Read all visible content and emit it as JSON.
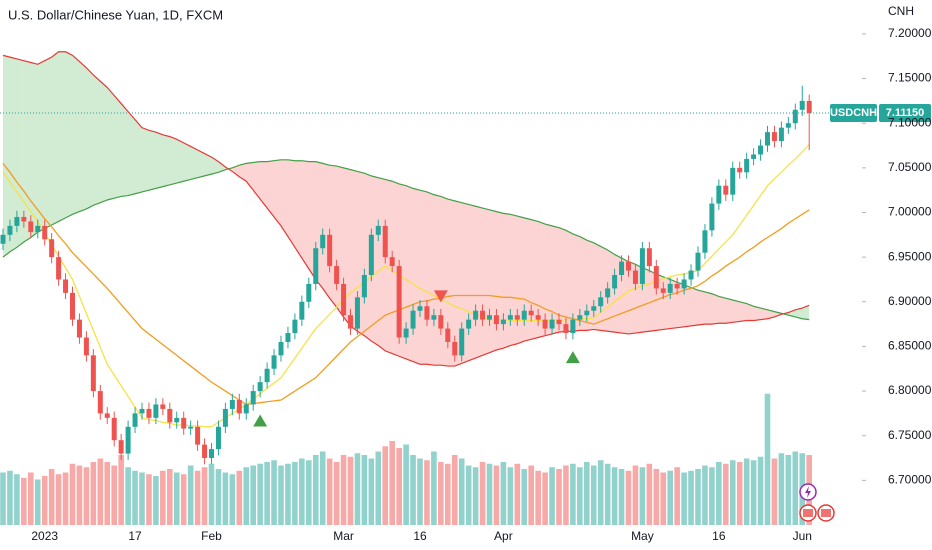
{
  "chart_data": {
    "type": "candlestick",
    "title": "U.S. Dollar/Chinese Yuan, 1D, FXCM",
    "axis_label": "CNH",
    "symbol": "USDCNH",
    "last_label": "7.11150",
    "up_color": "#26a69a",
    "down_color": "#ef5350",
    "volume_up_color": "rgba(38,166,154,0.5)",
    "volume_down_color": "rgba(239,83,80,0.5)",
    "categories": [
      null,
      null,
      null,
      null,
      null,
      null,
      "2023",
      null,
      null,
      null,
      null,
      null,
      null,
      null,
      null,
      null,
      null,
      null,
      null,
      "17",
      null,
      null,
      null,
      null,
      null,
      null,
      null,
      null,
      null,
      null,
      "Feb",
      null,
      null,
      null,
      null,
      null,
      null,
      null,
      null,
      null,
      null,
      null,
      null,
      null,
      null,
      null,
      null,
      null,
      null,
      "Mar",
      null,
      null,
      null,
      null,
      null,
      null,
      null,
      null,
      null,
      null,
      "16",
      null,
      null,
      null,
      null,
      null,
      null,
      null,
      null,
      null,
      null,
      null,
      "Apr",
      null,
      null,
      null,
      null,
      null,
      null,
      null,
      null,
      null,
      null,
      null,
      null,
      null,
      null,
      null,
      null,
      null,
      null,
      null,
      "May",
      null,
      null,
      null,
      null,
      null,
      null,
      null,
      null,
      null,
      null,
      "16",
      null,
      null,
      null,
      null,
      null,
      null,
      null,
      null,
      null,
      null,
      null,
      "Jun",
      null
    ],
    "open": [
      6.965,
      6.975,
      6.985,
      6.995,
      6.99,
      6.978,
      6.985,
      6.97,
      6.95,
      6.925,
      6.91,
      6.88,
      6.86,
      6.84,
      6.8,
      6.775,
      6.77,
      6.745,
      6.73,
      6.76,
      6.775,
      6.78,
      6.77,
      6.785,
      6.78,
      6.765,
      6.77,
      6.758,
      6.76,
      6.74,
      6.725,
      6.735,
      6.76,
      6.78,
      6.79,
      6.775,
      6.785,
      6.8,
      6.81,
      6.825,
      6.84,
      6.855,
      6.865,
      6.88,
      6.9,
      6.92,
      6.96,
      6.975,
      6.94,
      6.92,
      6.885,
      6.87,
      6.905,
      6.93,
      6.975,
      6.985,
      6.95,
      6.94,
      6.86,
      6.87,
      6.89,
      6.895,
      6.88,
      6.885,
      6.87,
      6.855,
      6.84,
      6.87,
      6.88,
      6.89,
      6.88,
      6.885,
      6.875,
      6.88,
      6.885,
      6.88,
      6.89,
      6.885,
      6.88,
      6.87,
      6.88,
      6.875,
      6.865,
      6.88,
      6.885,
      6.89,
      6.895,
      6.905,
      6.915,
      6.93,
      6.945,
      6.935,
      6.92,
      6.96,
      6.94,
      6.915,
      6.91,
      6.92,
      6.915,
      6.925,
      6.935,
      6.955,
      6.98,
      7.01,
      7.03,
      7.02,
      7.05,
      7.045,
      7.06,
      7.065,
      7.075,
      7.09,
      7.08,
      7.095,
      7.1,
      7.115,
      7.125
    ],
    "high": [
      6.982,
      6.992,
      7.002,
      7.002,
      6.997,
      6.992,
      6.992,
      6.977,
      6.957,
      6.932,
      6.917,
      6.887,
      6.867,
      6.847,
      6.807,
      6.782,
      6.777,
      6.752,
      6.767,
      6.782,
      6.787,
      6.787,
      6.792,
      6.792,
      6.787,
      6.777,
      6.777,
      6.767,
      6.767,
      6.747,
      6.742,
      6.767,
      6.787,
      6.797,
      6.797,
      6.792,
      6.807,
      6.817,
      6.832,
      6.847,
      6.862,
      6.872,
      6.887,
      6.907,
      6.927,
      6.967,
      6.982,
      6.982,
      6.947,
      6.927,
      6.892,
      6.912,
      6.937,
      6.982,
      6.992,
      6.992,
      6.957,
      6.947,
      6.877,
      6.897,
      6.902,
      6.902,
      6.892,
      6.892,
      6.877,
      6.862,
      6.877,
      6.887,
      6.897,
      6.897,
      6.892,
      6.892,
      6.887,
      6.892,
      6.892,
      6.897,
      6.897,
      6.892,
      6.887,
      6.887,
      6.887,
      6.882,
      6.887,
      6.892,
      6.897,
      6.902,
      6.912,
      6.922,
      6.937,
      6.952,
      6.952,
      6.942,
      6.967,
      6.967,
      6.947,
      6.922,
      6.927,
      6.927,
      6.932,
      6.942,
      6.962,
      6.987,
      7.017,
      7.037,
      7.037,
      7.057,
      7.057,
      7.067,
      7.072,
      7.082,
      7.097,
      7.097,
      7.102,
      7.107,
      7.122,
      7.142,
      7.132
    ],
    "low": [
      6.958,
      6.968,
      6.978,
      6.983,
      6.971,
      6.971,
      6.963,
      6.943,
      6.918,
      6.903,
      6.873,
      6.853,
      6.833,
      6.793,
      6.768,
      6.763,
      6.738,
      6.723,
      6.723,
      6.753,
      6.768,
      6.763,
      6.763,
      6.773,
      6.758,
      6.758,
      6.751,
      6.751,
      6.733,
      6.718,
      6.718,
      6.728,
      6.753,
      6.773,
      6.768,
      6.768,
      6.778,
      6.793,
      6.803,
      6.818,
      6.833,
      6.848,
      6.858,
      6.873,
      6.893,
      6.913,
      6.953,
      6.933,
      6.913,
      6.878,
      6.863,
      6.863,
      6.898,
      6.923,
      6.968,
      6.943,
      6.933,
      6.853,
      6.853,
      6.863,
      6.883,
      6.873,
      6.873,
      6.863,
      6.848,
      6.833,
      6.833,
      6.863,
      6.873,
      6.873,
      6.873,
      6.868,
      6.868,
      6.873,
      6.873,
      6.873,
      6.878,
      6.873,
      6.863,
      6.863,
      6.868,
      6.858,
      6.858,
      6.873,
      6.878,
      6.883,
      6.888,
      6.898,
      6.908,
      6.923,
      6.928,
      6.913,
      6.913,
      6.933,
      6.908,
      6.903,
      6.903,
      6.908,
      6.908,
      6.918,
      6.928,
      6.948,
      6.973,
      7.003,
      7.013,
      7.013,
      7.038,
      7.038,
      7.053,
      7.058,
      7.068,
      7.073,
      7.073,
      7.088,
      7.093,
      7.108,
      7.07
    ],
    "close": [
      6.975,
      6.985,
      6.995,
      6.99,
      6.978,
      6.985,
      6.97,
      6.95,
      6.925,
      6.91,
      6.88,
      6.86,
      6.84,
      6.8,
      6.775,
      6.77,
      6.745,
      6.73,
      6.76,
      6.775,
      6.78,
      6.77,
      6.785,
      6.78,
      6.765,
      6.77,
      6.758,
      6.76,
      6.74,
      6.725,
      6.735,
      6.76,
      6.78,
      6.79,
      6.775,
      6.785,
      6.8,
      6.81,
      6.825,
      6.84,
      6.855,
      6.865,
      6.88,
      6.9,
      6.92,
      6.96,
      6.975,
      6.94,
      6.92,
      6.885,
      6.87,
      6.905,
      6.93,
      6.975,
      6.985,
      6.95,
      6.94,
      6.86,
      6.87,
      6.89,
      6.895,
      6.88,
      6.885,
      6.87,
      6.855,
      6.84,
      6.87,
      6.88,
      6.89,
      6.88,
      6.885,
      6.875,
      6.88,
      6.885,
      6.88,
      6.89,
      6.885,
      6.88,
      6.87,
      6.88,
      6.875,
      6.865,
      6.88,
      6.885,
      6.89,
      6.895,
      6.905,
      6.915,
      6.93,
      6.945,
      6.935,
      6.92,
      6.96,
      6.94,
      6.915,
      6.91,
      6.92,
      6.915,
      6.925,
      6.935,
      6.955,
      6.98,
      7.01,
      7.03,
      7.02,
      7.05,
      7.045,
      7.06,
      7.065,
      7.075,
      7.09,
      7.08,
      7.095,
      7.1,
      7.115,
      7.125,
      7.1115
    ],
    "volume": [
      30,
      31,
      29,
      27,
      30,
      26,
      28,
      32,
      29,
      30,
      35,
      34,
      33,
      36,
      38,
      36,
      34,
      40,
      33,
      31,
      30,
      29,
      28,
      31,
      32,
      30,
      29,
      34,
      31,
      33,
      35,
      32,
      30,
      29,
      31,
      33,
      34,
      35,
      36,
      37,
      34,
      35,
      36,
      38,
      37,
      40,
      42,
      38,
      36,
      40,
      39,
      41,
      40,
      38,
      42,
      45,
      48,
      44,
      46,
      40,
      38,
      37,
      42,
      36,
      35,
      40,
      38,
      34,
      33,
      36,
      35,
      34,
      36,
      33,
      35,
      32,
      34,
      31,
      30,
      33,
      32,
      34,
      35,
      33,
      36,
      34,
      37,
      35,
      33,
      32,
      31,
      34,
      33,
      35,
      32,
      30,
      31,
      33,
      30,
      31,
      32,
      34,
      33,
      36,
      35,
      37,
      36,
      38,
      37,
      39,
      75,
      38,
      41,
      40,
      42,
      41,
      40
    ],
    "volume_ylim": [
      0,
      300
    ],
    "lines": [
      {
        "color": "#f5e346",
        "values": [
          7.045,
          7.034,
          7.023,
          7.012,
          7.001,
          6.99,
          6.977,
          6.964,
          6.951,
          6.938,
          6.925,
          6.906,
          6.887,
          6.868,
          6.849,
          6.83,
          6.818,
          6.806,
          6.794,
          6.782,
          6.77,
          6.768,
          6.767,
          6.765,
          6.764,
          6.762,
          6.762,
          6.761,
          6.761,
          6.76,
          6.76,
          6.765,
          6.77,
          6.775,
          6.78,
          6.785,
          6.791,
          6.797,
          6.803,
          6.809,
          6.815,
          6.826,
          6.837,
          6.848,
          6.859,
          6.87,
          6.878,
          6.886,
          6.894,
          6.902,
          6.91,
          6.916,
          6.922,
          6.928,
          6.934,
          6.94,
          6.935,
          6.93,
          6.925,
          6.92,
          6.915,
          6.911,
          6.907,
          6.903,
          6.899,
          6.895,
          6.892,
          6.889,
          6.886,
          6.883,
          6.88,
          6.88,
          6.88,
          6.879,
          6.879,
          6.879,
          6.879,
          6.879,
          6.879,
          6.879,
          6.879,
          6.88,
          6.88,
          6.881,
          6.881,
          6.882,
          6.888,
          6.894,
          6.9,
          6.906,
          6.912,
          6.915,
          6.918,
          6.92,
          6.923,
          6.926,
          6.928,
          6.93,
          6.931,
          6.933,
          6.935,
          6.943,
          6.951,
          6.959,
          6.967,
          6.975,
          6.986,
          6.997,
          7.008,
          7.019,
          7.03,
          7.038,
          7.045,
          7.053,
          7.06,
          7.068,
          7.076
        ]
      },
      {
        "color": "#f39c1f",
        "values": [
          7.055,
          7.045,
          7.034,
          7.024,
          7.013,
          7.003,
          6.993,
          6.984,
          6.974,
          6.965,
          6.955,
          6.947,
          6.939,
          6.931,
          6.923,
          6.915,
          6.906,
          6.897,
          6.888,
          6.879,
          6.87,
          6.864,
          6.858,
          6.852,
          6.846,
          6.84,
          6.834,
          6.828,
          6.822,
          6.816,
          6.81,
          6.805,
          6.8,
          6.795,
          6.79,
          6.785,
          6.786,
          6.787,
          6.788,
          6.789,
          6.79,
          6.795,
          6.8,
          6.805,
          6.81,
          6.815,
          6.823,
          6.831,
          6.839,
          6.847,
          6.855,
          6.861,
          6.867,
          6.873,
          6.879,
          6.885,
          6.888,
          6.891,
          6.894,
          6.897,
          6.9,
          6.901,
          6.903,
          6.904,
          6.906,
          6.907,
          6.907,
          6.907,
          6.907,
          6.907,
          6.907,
          6.906,
          6.905,
          6.905,
          6.904,
          6.903,
          6.899,
          6.896,
          6.892,
          6.889,
          6.885,
          6.883,
          6.881,
          6.879,
          6.877,
          6.875,
          6.878,
          6.881,
          6.884,
          6.887,
          6.89,
          6.893,
          6.896,
          6.899,
          6.902,
          6.905,
          6.908,
          6.91,
          6.913,
          6.915,
          6.918,
          6.923,
          6.929,
          6.934,
          6.94,
          6.945,
          6.95,
          6.956,
          6.961,
          6.967,
          6.972,
          6.977,
          6.982,
          6.988,
          6.993,
          6.998,
          7.003
        ]
      }
    ],
    "cloud": [
      {
        "color": "#43a047",
        "values": [
          6.95,
          6.956,
          6.961,
          6.967,
          6.972,
          6.978,
          6.982,
          6.986,
          6.99,
          6.994,
          6.998,
          7.001,
          7.004,
          7.008,
          7.011,
          7.014,
          7.016,
          7.018,
          7.019,
          7.021,
          7.023,
          7.025,
          7.027,
          7.029,
          7.031,
          7.033,
          7.035,
          7.037,
          7.039,
          7.041,
          7.043,
          7.045,
          7.048,
          7.05,
          7.053,
          7.055,
          7.056,
          7.057,
          7.057,
          7.058,
          7.059,
          7.059,
          7.058,
          7.058,
          7.057,
          7.057,
          7.055,
          7.053,
          7.052,
          7.05,
          7.048,
          7.046,
          7.044,
          7.041,
          7.039,
          7.037,
          7.035,
          7.032,
          7.03,
          7.027,
          7.025,
          7.023,
          7.02,
          7.018,
          7.015,
          7.013,
          7.011,
          7.009,
          7.007,
          7.005,
          7.003,
          7.001,
          6.999,
          6.998,
          6.996,
          6.994,
          6.992,
          6.99,
          6.987,
          6.985,
          6.983,
          6.98,
          6.976,
          6.973,
          6.969,
          6.966,
          6.962,
          6.958,
          6.953,
          6.949,
          6.945,
          6.942,
          6.938,
          6.935,
          6.931,
          6.928,
          6.925,
          6.922,
          6.919,
          6.916,
          6.913,
          6.911,
          6.909,
          6.906,
          6.904,
          6.902,
          6.9,
          6.898,
          6.895,
          6.893,
          6.891,
          6.889,
          6.887,
          6.885,
          6.883,
          6.881,
          6.88
        ]
      },
      {
        "color": "#e53935",
        "values": [
          7.176,
          7.174,
          7.172,
          7.17,
          7.168,
          7.166,
          7.17,
          7.174,
          7.18,
          7.18,
          7.176,
          7.169,
          7.162,
          7.154,
          7.147,
          7.14,
          7.131,
          7.122,
          7.113,
          7.104,
          7.095,
          7.092,
          7.09,
          7.087,
          7.085,
          7.082,
          7.078,
          7.074,
          7.07,
          7.066,
          7.062,
          7.057,
          7.051,
          7.046,
          7.04,
          7.035,
          7.025,
          7.015,
          7.005,
          6.995,
          6.985,
          6.973,
          6.961,
          6.949,
          6.937,
          6.925,
          6.915,
          6.904,
          6.894,
          6.883,
          6.873,
          6.867,
          6.862,
          6.856,
          6.851,
          6.845,
          6.842,
          6.839,
          6.836,
          6.833,
          6.83,
          6.83,
          6.829,
          6.829,
          6.828,
          6.828,
          6.831,
          6.834,
          6.837,
          6.84,
          6.843,
          6.846,
          6.848,
          6.851,
          6.853,
          6.856,
          6.858,
          6.86,
          6.862,
          6.864,
          6.866,
          6.867,
          6.867,
          6.868,
          6.868,
          6.869,
          6.868,
          6.867,
          6.866,
          6.865,
          6.864,
          6.865,
          6.866,
          6.867,
          6.868,
          6.869,
          6.87,
          6.871,
          6.872,
          6.873,
          6.874,
          6.875,
          6.875,
          6.876,
          6.876,
          6.877,
          6.878,
          6.879,
          6.879,
          6.88,
          6.881,
          6.883,
          6.886,
          6.888,
          6.891,
          6.893,
          6.896
        ]
      }
    ],
    "cloud_fill_colors": [
      "rgba(76,175,80,0.25)",
      "rgba(239,83,80,0.25)"
    ],
    "signals": [
      {
        "x": 37,
        "price": 6.767,
        "direction": "up",
        "color": "#43a047"
      },
      {
        "x": 63,
        "price": 6.906,
        "direction": "down",
        "color": "#f0544f"
      },
      {
        "x": 82,
        "price": 6.838,
        "direction": "up",
        "color": "#43a047"
      }
    ],
    "ylim": [
      6.65,
      7.238
    ],
    "yticks": [
      {
        "value": 7.2,
        "label": "7.20000"
      },
      {
        "value": 7.15,
        "label": "7.15000"
      },
      {
        "value": 7.1,
        "label": "7.10000"
      },
      {
        "value": 7.05,
        "label": "7.05000"
      },
      {
        "value": 7.0,
        "label": "7.00000"
      },
      {
        "value": 6.95,
        "label": "6.95000"
      },
      {
        "value": 6.9,
        "label": "6.90000"
      },
      {
        "value": 6.85,
        "label": "6.85000"
      },
      {
        "value": 6.8,
        "label": "6.80000"
      },
      {
        "value": 6.75,
        "label": "6.75000"
      },
      {
        "value": 6.7,
        "label": "6.70000"
      }
    ],
    "grid": false
  }
}
